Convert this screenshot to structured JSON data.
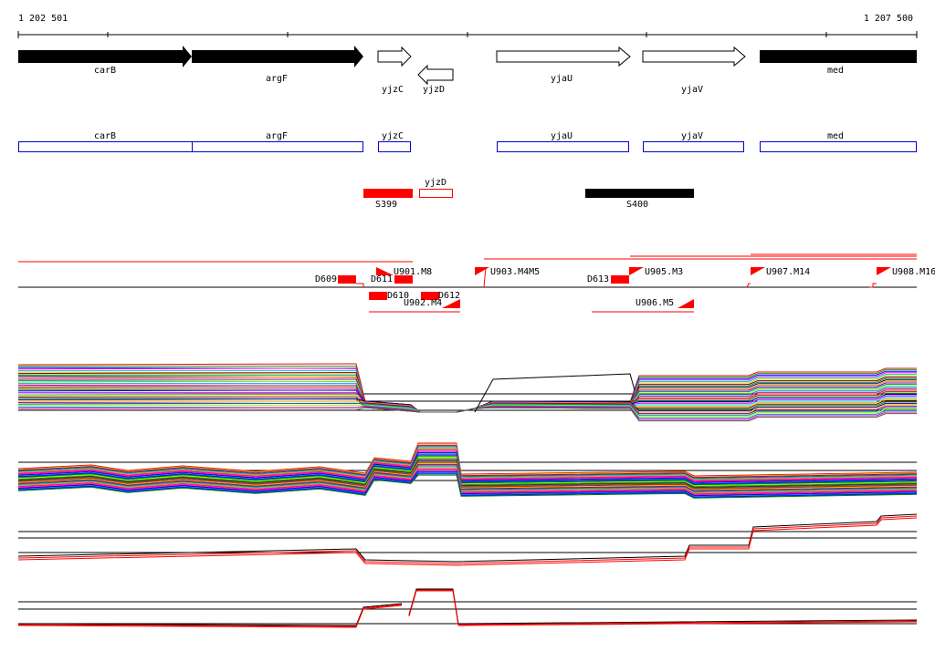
{
  "axis": {
    "start": "1 202 501",
    "end": "1 207 500"
  },
  "gene_arrows": [
    {
      "label": "carB"
    },
    {
      "label": "argF"
    },
    {
      "label": "yjzC"
    },
    {
      "label": "yjzD"
    },
    {
      "label": "yjaU"
    },
    {
      "label": "yjaV"
    },
    {
      "label": "med"
    }
  ],
  "gene_boxes": [
    {
      "label": "carB"
    },
    {
      "label": "argF"
    },
    {
      "label": "yjzC"
    },
    {
      "label": "yjaU"
    },
    {
      "label": "yjaV"
    },
    {
      "label": "med"
    }
  ],
  "segments": [
    {
      "label": "yjzD"
    },
    {
      "label": "S399"
    },
    {
      "label": "S400"
    }
  ],
  "features": [
    {
      "label": "D609"
    },
    {
      "label": "D611"
    },
    {
      "label": "U901.M8"
    },
    {
      "label": "U903.M4M5"
    },
    {
      "label": "D613"
    },
    {
      "label": "U905.M3"
    },
    {
      "label": "U907.M14"
    },
    {
      "label": "U908.M16"
    },
    {
      "label": "D610"
    },
    {
      "label": "D612"
    },
    {
      "label": "U902.M4"
    },
    {
      "label": "U906.M5"
    }
  ]
}
